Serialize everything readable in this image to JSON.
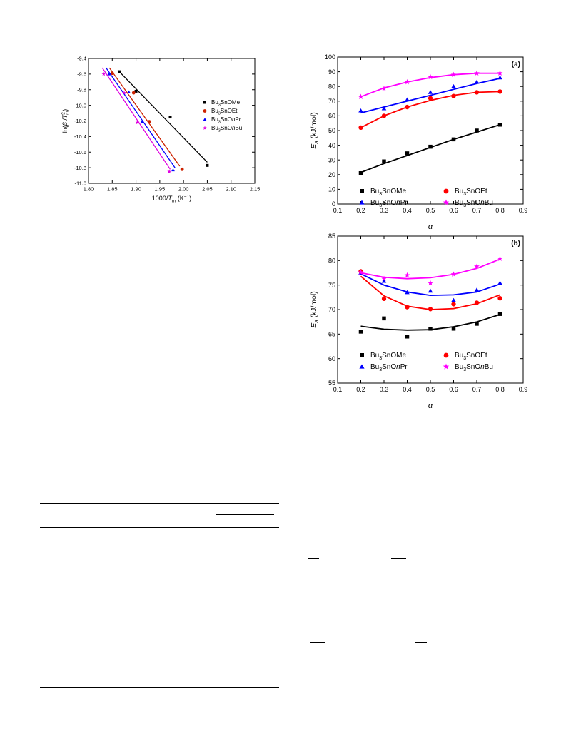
{
  "chart_data": [
    {
      "type": "scatter",
      "panel": "kissinger",
      "xlabel": "1000/Tm (K⁻¹)",
      "ylabel": "ln(β/Tm²)",
      "xlim": [
        1.8,
        2.15
      ],
      "ylim": [
        -11.0,
        -9.4
      ],
      "xticks": [
        1.8,
        1.85,
        1.9,
        1.95,
        2.0,
        2.05,
        2.1,
        2.15
      ],
      "yticks": [
        -9.4,
        -9.6,
        -9.8,
        -10.0,
        -10.2,
        -10.4,
        -10.6,
        -10.8,
        -11.0
      ],
      "legend_position": "right",
      "grid": false,
      "series": [
        {
          "name": "Bu3SnOMe",
          "color": "#000000",
          "marker": "square",
          "x": [
            1.865,
            1.9,
            1.972,
            2.05
          ],
          "y": [
            -9.57,
            -9.82,
            -10.15,
            -10.77
          ],
          "fit": [
            [
              1.862,
              -9.55
            ],
            [
              2.05,
              -10.73
            ]
          ]
        },
        {
          "name": "Bu3SnOEt",
          "color": "#cc2200",
          "marker": "circle",
          "x": [
            1.85,
            1.895,
            1.928,
            1.997
          ],
          "y": [
            -9.59,
            -9.84,
            -10.21,
            -10.82
          ],
          "fit": [
            [
              1.844,
              -9.52
            ],
            [
              1.992,
              -10.78
            ]
          ]
        },
        {
          "name": "Bu3SnOnPr",
          "color": "#0000ff",
          "marker": "triangle",
          "x": [
            1.843,
            1.885,
            1.913,
            1.978
          ],
          "y": [
            -9.6,
            -9.83,
            -10.21,
            -10.83
          ],
          "fit": [
            [
              1.837,
              -9.52
            ],
            [
              1.982,
              -10.8
            ]
          ]
        },
        {
          "name": "Bu3SnOnBu",
          "color": "#e000e0",
          "marker": "star",
          "x": [
            1.832,
            1.875,
            1.903,
            1.97
          ],
          "y": [
            -9.6,
            -9.84,
            -10.22,
            -10.85
          ],
          "fit": [
            [
              1.829,
              -9.52
            ],
            [
              1.972,
              -10.82
            ]
          ]
        }
      ]
    },
    {
      "type": "scatter",
      "panel": "(a)",
      "xlabel": "α",
      "ylabel": "Ea (kJ/mol)",
      "xlim": [
        0.1,
        0.9
      ],
      "ylim": [
        0,
        100
      ],
      "xticks": [
        0.1,
        0.2,
        0.3,
        0.4,
        0.5,
        0.6,
        0.7,
        0.8,
        0.9
      ],
      "yticks": [
        0,
        10,
        20,
        30,
        40,
        50,
        60,
        70,
        80,
        90,
        100
      ],
      "legend_position": "bottom",
      "grid": false,
      "x": [
        0.2,
        0.3,
        0.4,
        0.5,
        0.6,
        0.7,
        0.8
      ],
      "series": [
        {
          "name": "Bu3SnOMe",
          "color": "#000000",
          "marker": "square",
          "values": [
            21,
            29,
            34.5,
            39,
            44,
            50,
            54
          ],
          "fit": [
            21.5,
            27.5,
            33,
            38.5,
            44,
            49,
            54
          ]
        },
        {
          "name": "Bu3SnOEt",
          "color": "#ff0000",
          "marker": "circle",
          "values": [
            52,
            60,
            66,
            72,
            73.5,
            76,
            76.5
          ],
          "fit": [
            52,
            60,
            66,
            70.5,
            74,
            76,
            76.5
          ]
        },
        {
          "name": "Bu3SnOnPr",
          "color": "#0000ff",
          "marker": "triangle",
          "values": [
            63.5,
            65,
            71,
            76,
            80,
            83,
            86
          ],
          "fit": [
            62,
            66,
            70,
            74,
            78,
            82,
            85.5
          ]
        },
        {
          "name": "Bu3SnOnBu",
          "color": "#ff00ff",
          "marker": "star",
          "values": [
            73,
            78.5,
            83,
            86.5,
            88,
            89,
            89
          ],
          "fit": [
            73,
            79,
            83,
            86,
            88,
            89,
            89
          ]
        }
      ]
    },
    {
      "type": "scatter",
      "panel": "(b)",
      "xlabel": "α",
      "ylabel": "Ea (kJ/mol)",
      "xlim": [
        0.1,
        0.9
      ],
      "ylim": [
        55,
        85
      ],
      "xticks": [
        0.1,
        0.2,
        0.3,
        0.4,
        0.5,
        0.6,
        0.7,
        0.8,
        0.9
      ],
      "yticks": [
        55,
        60,
        65,
        70,
        75,
        80,
        85
      ],
      "legend_position": "bottom",
      "grid": false,
      "x": [
        0.2,
        0.3,
        0.4,
        0.5,
        0.6,
        0.7,
        0.8
      ],
      "series": [
        {
          "name": "Bu3SnOMe",
          "color": "#000000",
          "marker": "square",
          "values": [
            65.5,
            68.2,
            64.5,
            66.1,
            66.1,
            67.1,
            69.1
          ],
          "fit": [
            66.6,
            66.0,
            65.8,
            65.9,
            66.5,
            67.5,
            69.0
          ]
        },
        {
          "name": "Bu3SnOEt",
          "color": "#ff0000",
          "marker": "circle",
          "values": [
            77.8,
            72.2,
            70.5,
            70.1,
            71.1,
            71.4,
            72.3
          ],
          "fit": [
            76.8,
            72.8,
            70.7,
            70.0,
            70.2,
            71.2,
            73.0
          ]
        },
        {
          "name": "Bu3SnOnPr",
          "color": "#0000ff",
          "marker": "triangle",
          "values": [
            77.5,
            75.8,
            73.5,
            73.8,
            71.9,
            74.0,
            75.4
          ],
          "fit": [
            77.3,
            75.0,
            73.6,
            72.9,
            73.0,
            73.6,
            75.2
          ]
        },
        {
          "name": "Bu3SnOnBu",
          "color": "#ff00ff",
          "marker": "star",
          "values": [
            77.6,
            76.3,
            77.0,
            75.4,
            77.2,
            78.8,
            80.4
          ],
          "fit": [
            77.5,
            76.6,
            76.3,
            76.5,
            77.2,
            78.4,
            80.3
          ]
        }
      ]
    }
  ],
  "panel_labels": {
    "a": "(a)",
    "b": "(b)"
  },
  "legend_labels": {
    "me": {
      "base": "Bu",
      "sub": "3",
      "rest": "SnOMe",
      "italic": "",
      "tail": ""
    },
    "et": {
      "base": "Bu",
      "sub": "3",
      "rest": "SnOEt",
      "italic": "",
      "tail": ""
    },
    "pr": {
      "base": "Bu",
      "sub": "3",
      "rest": "SnO",
      "italic": "n",
      "tail": "Pr"
    },
    "bu": {
      "base": "Bu",
      "sub": "3",
      "rest": "SnO",
      "italic": "n",
      "tail": "Bu"
    }
  },
  "axis_text": {
    "kiss_x_main": "1000/",
    "kiss_x_T": "T",
    "kiss_x_sub": "m",
    "kiss_x_unit": " (K",
    "kiss_x_sup": "−1",
    "kiss_x_close": ")",
    "kiss_y_pre": "ln(",
    "kiss_y_beta": "β",
    "kiss_y_slash": " /",
    "kiss_y_T": "T",
    "kiss_y_sub": "m",
    "kiss_y_sup": "2",
    "kiss_y_close": ")",
    "ea_E": "E",
    "ea_sub": "a",
    "ea_unit": " (kJ/mol)",
    "alpha": "α"
  }
}
